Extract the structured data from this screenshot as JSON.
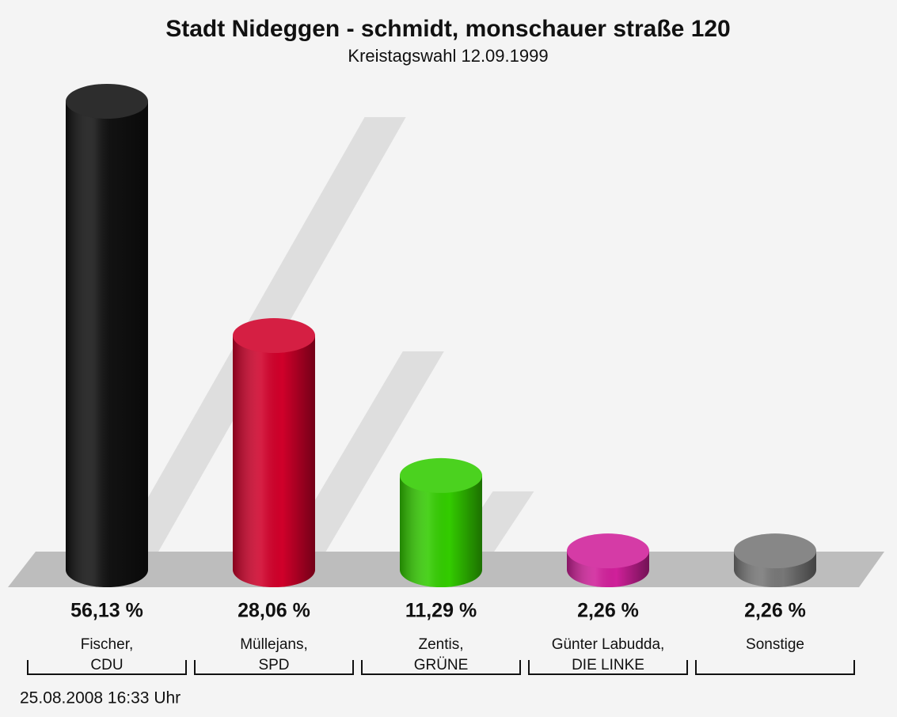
{
  "chart_data": {
    "type": "bar3d",
    "title": "Stadt Nideggen - schmidt, monschauer straße 120",
    "subtitle": "Kreistagswahl 12.09.1999",
    "categories": [
      [
        "Fischer,",
        "CDU"
      ],
      [
        "Müllejans,",
        "SPD"
      ],
      [
        "Zentis,",
        "GRÜNE"
      ],
      [
        "Günter Labudda,",
        "DIE LINKE"
      ],
      [
        "Sonstige"
      ]
    ],
    "values": [
      56.13,
      28.06,
      11.29,
      2.26,
      2.26
    ],
    "value_labels": [
      "56,13 %",
      "28,06 %",
      "11,29 %",
      "2,26 %",
      "2,26 %"
    ],
    "colors": [
      "#111111",
      "#d0002a",
      "#33cc00",
      "#d0209a",
      "#777777"
    ],
    "footer": "25.08.2008 16:33 Uhr"
  }
}
